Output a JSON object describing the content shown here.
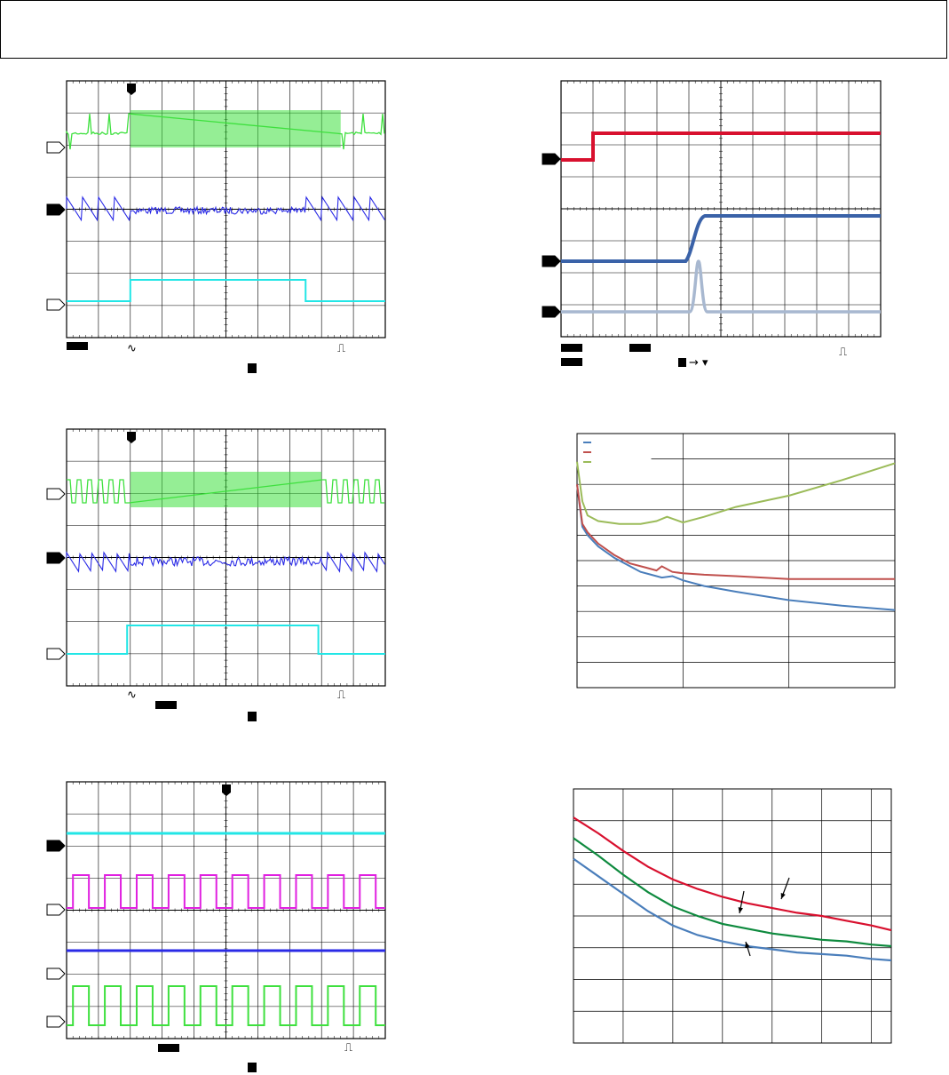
{
  "header": {
    "text": ""
  },
  "colors": {
    "green": "#3ee03e",
    "blue": "#2a2ae6",
    "cyan": "#22e6e6",
    "magenta": "#e020e0",
    "red": "#d8102e",
    "steel_blue": "#3a62a8",
    "light_steel": "#a8b8d0",
    "chart_blue": "#4a7ebb",
    "chart_red": "#c0504d",
    "chart_olive": "#9bbb59",
    "chart_green": "#0e8a3e"
  },
  "chart_data": [
    {
      "type": "line",
      "panel": "scope-1",
      "title": "",
      "traces": [
        {
          "color_key": "green",
          "marker": "hollow",
          "shape": "burst",
          "burst_x": [
            0.2,
            0.86
          ]
        },
        {
          "color_key": "blue",
          "marker": "solid",
          "shape": "ramp-ripple"
        },
        {
          "color_key": "cyan",
          "marker": "hollow",
          "shape": "pulse",
          "pulse_x": [
            0.2,
            0.75
          ]
        }
      ],
      "trigger_symbols": [
        "∿",
        "⎍"
      ]
    },
    {
      "type": "line",
      "panel": "scope-2",
      "title": "",
      "traces": [
        {
          "color_key": "red",
          "marker": "solid",
          "shape": "step",
          "step_x": 0.1
        },
        {
          "color_key": "steel_blue",
          "marker": "solid",
          "shape": "ramp-step",
          "step_x": [
            0.39,
            0.45
          ]
        },
        {
          "color_key": "light_steel",
          "marker": "solid",
          "shape": "spike",
          "spike_x": 0.43
        }
      ],
      "trigger_symbols": [
        "⎍"
      ]
    },
    {
      "type": "line",
      "panel": "scope-3",
      "title": "",
      "traces": [
        {
          "color_key": "green",
          "marker": "hollow",
          "shape": "burst",
          "burst_x": [
            0.2,
            0.8
          ]
        },
        {
          "color_key": "blue",
          "marker": "solid",
          "shape": "ramp-ripple"
        },
        {
          "color_key": "cyan",
          "marker": "hollow",
          "shape": "pulse",
          "pulse_x": [
            0.19,
            0.79
          ]
        }
      ],
      "trigger_symbols": [
        "∿",
        "⎍"
      ]
    },
    {
      "type": "line",
      "panel": "graph-1",
      "title": "",
      "xlabel": "",
      "ylabel": "",
      "xlim": [
        0,
        3
      ],
      "ylim": [
        0,
        9
      ],
      "series": [
        {
          "color_key": "chart_blue",
          "x": [
            0,
            0.05,
            0.1,
            0.2,
            0.35,
            0.5,
            0.6,
            0.7,
            0.8,
            0.9,
            1.0,
            1.2,
            1.5,
            2.0,
            2.5,
            3.0
          ],
          "y": [
            7.2,
            5.7,
            5.4,
            5.0,
            4.6,
            4.3,
            4.1,
            4.0,
            3.9,
            3.95,
            3.8,
            3.6,
            3.4,
            3.1,
            2.9,
            2.75
          ]
        },
        {
          "color_key": "chart_red",
          "x": [
            0,
            0.05,
            0.1,
            0.2,
            0.35,
            0.5,
            0.65,
            0.75,
            0.8,
            0.9,
            1.0,
            1.2,
            1.5,
            2.0,
            2.5,
            3.0
          ],
          "y": [
            7.2,
            5.8,
            5.5,
            5.1,
            4.7,
            4.4,
            4.25,
            4.15,
            4.3,
            4.1,
            4.05,
            4.0,
            3.95,
            3.85,
            3.85,
            3.85
          ]
        },
        {
          "color_key": "chart_olive",
          "x": [
            0,
            0.05,
            0.1,
            0.2,
            0.4,
            0.6,
            0.75,
            0.85,
            1.0,
            1.2,
            1.5,
            2.0,
            2.5,
            3.0
          ],
          "y": [
            8.0,
            6.6,
            6.1,
            5.9,
            5.8,
            5.8,
            5.9,
            6.05,
            5.85,
            6.05,
            6.4,
            6.8,
            7.35,
            7.95
          ]
        }
      ],
      "legend_placement": "top-left"
    },
    {
      "type": "line",
      "panel": "graph-2",
      "title": "",
      "xlabel": "",
      "ylabel": "",
      "xlim": [
        0,
        6.4
      ],
      "ylim": [
        0,
        8
      ],
      "series": [
        {
          "color_key": "red",
          "x": [
            0,
            0.5,
            1,
            1.5,
            2,
            2.5,
            3,
            3.5,
            4,
            4.5,
            5,
            5.5,
            6,
            6.4
          ],
          "y": [
            7.1,
            6.6,
            6.05,
            5.55,
            5.15,
            4.85,
            4.6,
            4.4,
            4.25,
            4.1,
            4.0,
            3.85,
            3.7,
            3.55
          ]
        },
        {
          "color_key": "chart_green",
          "x": [
            0,
            0.5,
            1,
            1.5,
            2,
            2.5,
            3,
            3.5,
            4,
            4.5,
            5,
            5.5,
            6,
            6.4
          ],
          "y": [
            6.45,
            5.9,
            5.3,
            4.75,
            4.3,
            4.0,
            3.75,
            3.6,
            3.45,
            3.35,
            3.25,
            3.2,
            3.1,
            3.05
          ]
        },
        {
          "color_key": "chart_blue",
          "x": [
            0,
            0.5,
            1,
            1.5,
            2,
            2.5,
            3,
            3.5,
            4,
            4.5,
            5,
            5.5,
            6,
            6.4
          ],
          "y": [
            5.8,
            5.25,
            4.7,
            4.15,
            3.7,
            3.4,
            3.2,
            3.05,
            2.95,
            2.85,
            2.8,
            2.75,
            2.65,
            2.6
          ]
        }
      ],
      "annotation_arrows": 3
    },
    {
      "type": "line",
      "panel": "scope-4",
      "title": "",
      "traces": [
        {
          "color_key": "cyan",
          "marker": "solid",
          "shape": "flat"
        },
        {
          "color_key": "magenta",
          "marker": "hollow",
          "shape": "square-wave",
          "periods": 10
        },
        {
          "color_key": "blue",
          "marker": "hollow",
          "shape": "flat"
        },
        {
          "color_key": "green",
          "marker": "hollow",
          "shape": "square-wave",
          "periods": 10
        }
      ],
      "trigger_symbols": [
        "⎍"
      ]
    }
  ]
}
